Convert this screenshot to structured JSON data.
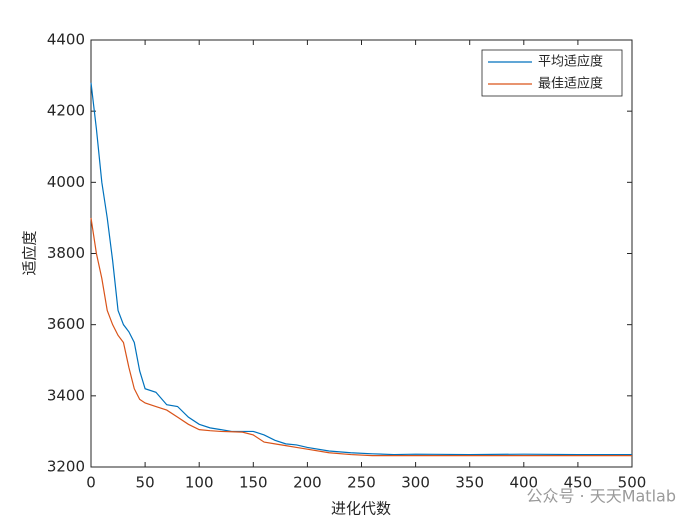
{
  "chart_data": {
    "type": "line",
    "x_label": "进化代数",
    "y_label": "适应度",
    "watermark": "公众号 · 天天Matlab",
    "x": [
      0,
      5,
      10,
      15,
      20,
      25,
      30,
      35,
      40,
      45,
      50,
      60,
      70,
      80,
      90,
      100,
      110,
      120,
      130,
      140,
      150,
      160,
      170,
      180,
      190,
      200,
      220,
      240,
      260,
      280,
      300,
      350,
      400,
      450,
      500
    ],
    "series": [
      {
        "name": "平均适应度",
        "color": "#0072bd",
        "values": [
          4280,
          4150,
          4000,
          3900,
          3780,
          3640,
          3600,
          3580,
          3550,
          3470,
          3420,
          3410,
          3375,
          3370,
          3340,
          3320,
          3310,
          3305,
          3300,
          3300,
          3300,
          3290,
          3275,
          3265,
          3262,
          3255,
          3245,
          3240,
          3237,
          3235,
          3236,
          3235,
          3236,
          3235,
          3235
        ]
      },
      {
        "name": "最佳适应度",
        "color": "#d95319",
        "values": [
          3900,
          3800,
          3730,
          3640,
          3600,
          3570,
          3550,
          3480,
          3420,
          3390,
          3380,
          3370,
          3360,
          3340,
          3320,
          3305,
          3302,
          3300,
          3299,
          3298,
          3290,
          3270,
          3265,
          3260,
          3255,
          3250,
          3240,
          3235,
          3232,
          3232,
          3232,
          3232,
          3232,
          3232,
          3232
        ]
      }
    ],
    "xlim": [
      0,
      500
    ],
    "xticks": [
      0,
      50,
      100,
      150,
      200,
      250,
      300,
      350,
      400,
      450,
      500
    ],
    "ylim": [
      3200,
      4400
    ],
    "yticks": [
      3200,
      3400,
      3600,
      3800,
      4000,
      4200,
      4400
    ],
    "legend": "northeast"
  }
}
